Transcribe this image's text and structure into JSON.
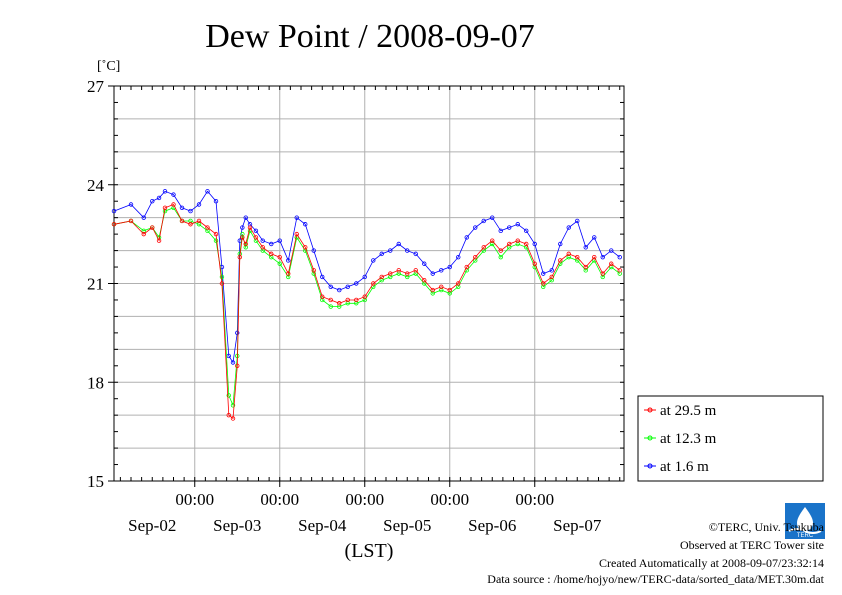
{
  "chart_data": {
    "type": "line",
    "title": "Dew Point / 2008-09-07",
    "ylabel": "[˚C]",
    "xlabel": "(LST)",
    "ylim": [
      15,
      27
    ],
    "yticks": [
      "15",
      "18",
      "21",
      "24",
      "27"
    ],
    "xlim": [
      -0.95,
      5.05
    ],
    "time_ticks": [
      {
        "x": 0,
        "label": "00:00"
      },
      {
        "x": 1,
        "label": "00:00"
      },
      {
        "x": 2,
        "label": "00:00"
      },
      {
        "x": 3,
        "label": "00:00"
      },
      {
        "x": 4,
        "label": "00:00"
      }
    ],
    "date_labels": [
      {
        "x": -0.5,
        "label": "Sep-02"
      },
      {
        "x": 0.5,
        "label": "Sep-03"
      },
      {
        "x": 1.5,
        "label": "Sep-04"
      },
      {
        "x": 2.5,
        "label": "Sep-05"
      },
      {
        "x": 3.5,
        "label": "Sep-06"
      },
      {
        "x": 4.5,
        "label": "Sep-07"
      }
    ],
    "grid": true,
    "legend_position": "right",
    "series": [
      {
        "name": "at 29.5 m",
        "color": "#ff0000",
        "x": [
          -0.95,
          -0.75,
          -0.6,
          -0.5,
          -0.42,
          -0.35,
          -0.25,
          -0.15,
          -0.05,
          0.05,
          0.15,
          0.25,
          0.32,
          0.4,
          0.45,
          0.5,
          0.53,
          0.56,
          0.6,
          0.65,
          0.72,
          0.8,
          0.9,
          1.0,
          1.1,
          1.2,
          1.3,
          1.4,
          1.5,
          1.6,
          1.7,
          1.8,
          1.9,
          2.0,
          2.1,
          2.2,
          2.3,
          2.4,
          2.5,
          2.6,
          2.7,
          2.8,
          2.9,
          3.0,
          3.1,
          3.2,
          3.3,
          3.4,
          3.5,
          3.6,
          3.7,
          3.8,
          3.9,
          4.0,
          4.1,
          4.2,
          4.3,
          4.4,
          4.5,
          4.6,
          4.7,
          4.8,
          4.9,
          5.0
        ],
        "y": [
          22.8,
          22.9,
          22.5,
          22.7,
          22.3,
          23.3,
          23.4,
          22.9,
          22.8,
          22.9,
          22.7,
          22.5,
          21.0,
          17.0,
          16.9,
          18.5,
          21.8,
          22.4,
          22.2,
          22.7,
          22.4,
          22.1,
          21.9,
          21.8,
          21.3,
          22.5,
          22.1,
          21.4,
          20.6,
          20.5,
          20.4,
          20.5,
          20.5,
          20.6,
          21.0,
          21.2,
          21.3,
          21.4,
          21.3,
          21.4,
          21.1,
          20.8,
          20.9,
          20.8,
          21.0,
          21.5,
          21.8,
          22.1,
          22.3,
          22.0,
          22.2,
          22.3,
          22.2,
          21.6,
          21.0,
          21.2,
          21.7,
          21.9,
          21.8,
          21.5,
          21.8,
          21.3,
          21.6,
          21.4
        ]
      },
      {
        "name": "at 12.3 m",
        "color": "#00ff00",
        "x": [
          -0.95,
          -0.75,
          -0.6,
          -0.5,
          -0.42,
          -0.35,
          -0.25,
          -0.15,
          -0.05,
          0.05,
          0.15,
          0.25,
          0.32,
          0.4,
          0.45,
          0.5,
          0.53,
          0.56,
          0.6,
          0.65,
          0.72,
          0.8,
          0.9,
          1.0,
          1.1,
          1.2,
          1.3,
          1.4,
          1.5,
          1.6,
          1.7,
          1.8,
          1.9,
          2.0,
          2.1,
          2.2,
          2.3,
          2.4,
          2.5,
          2.6,
          2.7,
          2.8,
          2.9,
          3.0,
          3.1,
          3.2,
          3.3,
          3.4,
          3.5,
          3.6,
          3.7,
          3.8,
          3.9,
          4.0,
          4.1,
          4.2,
          4.3,
          4.4,
          4.5,
          4.6,
          4.7,
          4.8,
          4.9,
          5.0
        ],
        "y": [
          22.8,
          22.9,
          22.6,
          22.7,
          22.4,
          23.2,
          23.3,
          22.9,
          22.9,
          22.8,
          22.6,
          22.3,
          21.2,
          17.6,
          17.3,
          18.8,
          21.9,
          22.5,
          22.1,
          22.6,
          22.3,
          22.0,
          21.8,
          21.6,
          21.2,
          22.4,
          22.0,
          21.3,
          20.5,
          20.3,
          20.3,
          20.4,
          20.4,
          20.5,
          20.9,
          21.1,
          21.2,
          21.3,
          21.2,
          21.3,
          21.0,
          20.7,
          20.8,
          20.7,
          20.9,
          21.4,
          21.7,
          22.0,
          22.2,
          21.8,
          22.1,
          22.2,
          22.1,
          21.5,
          20.9,
          21.1,
          21.6,
          21.8,
          21.7,
          21.4,
          21.7,
          21.2,
          21.5,
          21.3
        ]
      },
      {
        "name": "at 1.6 m",
        "color": "#0000ff",
        "x": [
          -0.95,
          -0.75,
          -0.6,
          -0.5,
          -0.42,
          -0.35,
          -0.25,
          -0.15,
          -0.05,
          0.05,
          0.15,
          0.25,
          0.32,
          0.4,
          0.45,
          0.5,
          0.53,
          0.56,
          0.6,
          0.65,
          0.72,
          0.8,
          0.9,
          1.0,
          1.1,
          1.2,
          1.3,
          1.4,
          1.5,
          1.6,
          1.7,
          1.8,
          1.9,
          2.0,
          2.1,
          2.2,
          2.3,
          2.4,
          2.5,
          2.6,
          2.7,
          2.8,
          2.9,
          3.0,
          3.1,
          3.2,
          3.3,
          3.4,
          3.5,
          3.6,
          3.7,
          3.8,
          3.9,
          4.0,
          4.1,
          4.2,
          4.3,
          4.4,
          4.5,
          4.6,
          4.7,
          4.8,
          4.9,
          5.0
        ],
        "y": [
          23.2,
          23.4,
          23.0,
          23.5,
          23.6,
          23.8,
          23.7,
          23.3,
          23.2,
          23.4,
          23.8,
          23.5,
          21.5,
          18.8,
          18.6,
          19.5,
          22.3,
          22.7,
          23.0,
          22.8,
          22.6,
          22.3,
          22.2,
          22.3,
          21.7,
          23.0,
          22.8,
          22.0,
          21.2,
          20.9,
          20.8,
          20.9,
          21.0,
          21.2,
          21.7,
          21.9,
          22.0,
          22.2,
          22.0,
          21.9,
          21.6,
          21.3,
          21.4,
          21.5,
          21.8,
          22.4,
          22.7,
          22.9,
          23.0,
          22.6,
          22.7,
          22.8,
          22.6,
          22.2,
          21.3,
          21.4,
          22.2,
          22.7,
          22.9,
          22.1,
          22.4,
          21.8,
          22.0,
          21.8
        ]
      }
    ]
  },
  "footer": {
    "copyright": "©TERC, Univ. Tsukuba",
    "observed": "Observed at TERC Tower site",
    "created": "Created Automatically at 2008-09-07/23:32:14",
    "source": "Data source : /home/hojyo/new/TERC-data/sorted_data/MET.30m.dat"
  },
  "logo": {
    "text": "TERC"
  }
}
